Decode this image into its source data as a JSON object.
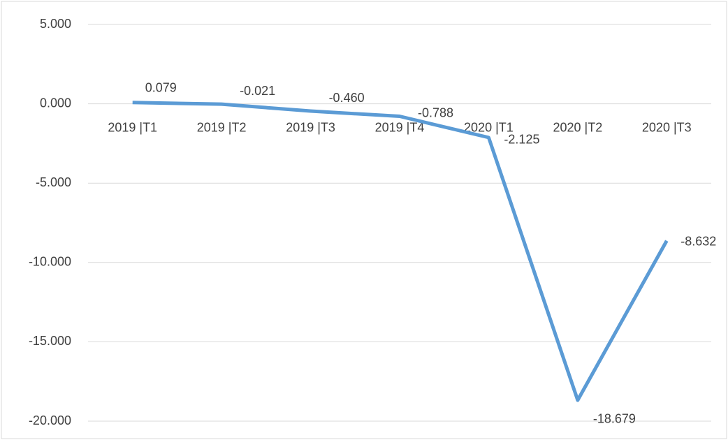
{
  "chart_data": {
    "type": "line",
    "categories": [
      "2019 |T1",
      "2019 |T2",
      "2019 |T3",
      "2019 |T4",
      "2020 |T1",
      "2020 |T2",
      "2020 |T3"
    ],
    "values": [
      0.079,
      -0.021,
      -0.46,
      -0.788,
      -2.125,
      -18.679,
      -8.632
    ],
    "value_labels": [
      "0.079",
      "-0.021",
      "-0.460",
      "-0.788",
      "-2.125",
      "-18.679",
      "-8.632"
    ],
    "color": "#5b9bd5",
    "ylim": [
      -20,
      5
    ],
    "yticks": [
      {
        "value": 5,
        "label": "5.000"
      },
      {
        "value": 0,
        "label": "0.000"
      },
      {
        "value": -5,
        "label": "-5.000"
      },
      {
        "value": -10,
        "label": "-10.000"
      },
      {
        "value": -15,
        "label": "-15.000"
      },
      {
        "value": -20,
        "label": "-20.000"
      }
    ],
    "grid": true
  }
}
